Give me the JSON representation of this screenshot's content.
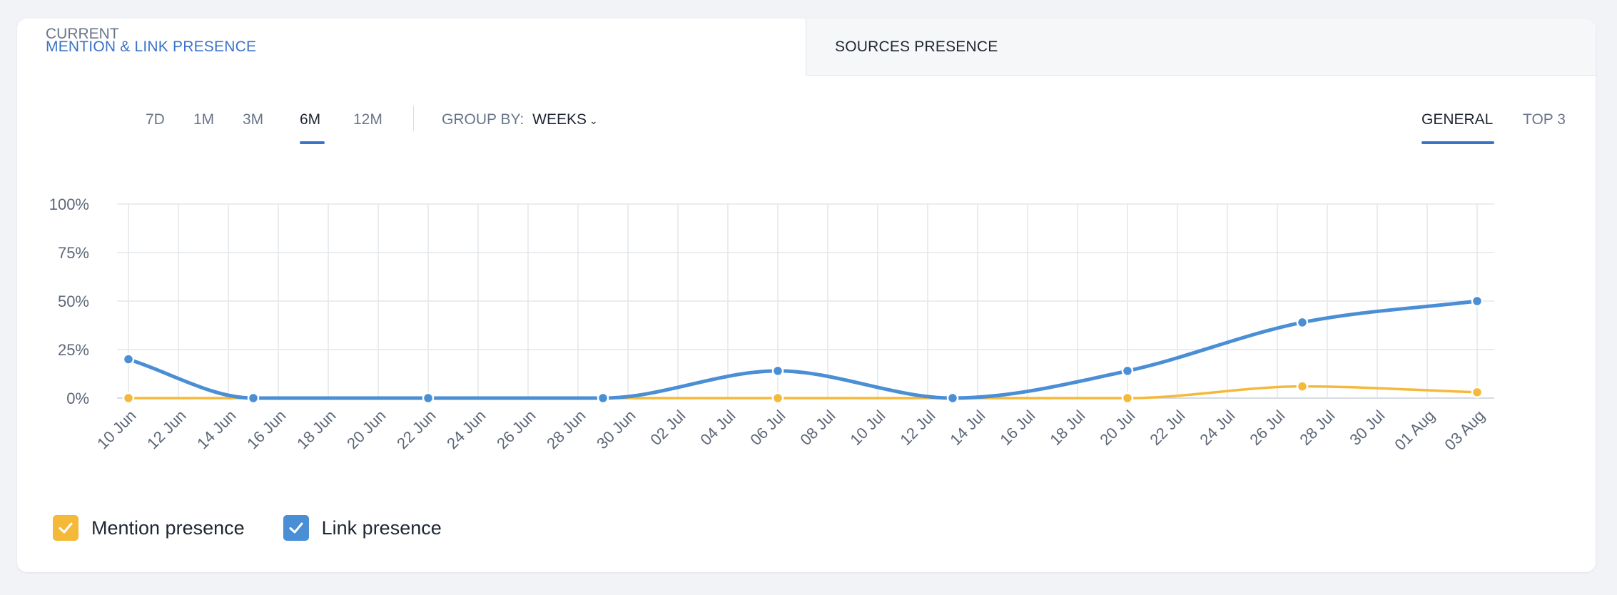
{
  "tabs": [
    {
      "label": "MENTION & LINK PRESENCE",
      "active": true
    },
    {
      "label": "SOURCES PRESENCE",
      "active": false
    }
  ],
  "periods": [
    "CURRENT",
    "7D",
    "1M",
    "3M",
    "6M",
    "12M"
  ],
  "active_period": "6M",
  "group_by": {
    "label": "GROUP BY:",
    "value": "WEEKS"
  },
  "views": [
    "GENERAL",
    "TOP 3"
  ],
  "active_view": "GENERAL",
  "colors": {
    "mention": "#f5b93a",
    "link": "#4a8ed5",
    "accent": "#3a73c8"
  },
  "legend": [
    {
      "label": "Mention presence",
      "series": "mention",
      "checked": true
    },
    {
      "label": "Link presence",
      "series": "link",
      "checked": true
    }
  ],
  "chart_data": {
    "type": "line",
    "y_ticks": [
      "100%",
      "75%",
      "50%",
      "25%",
      "0%"
    ],
    "ylim": [
      0,
      100
    ],
    "x_ticks": [
      "10 Jun",
      "12 Jun",
      "14 Jun",
      "16 Jun",
      "18 Jun",
      "20 Jun",
      "22 Jun",
      "24 Jun",
      "26 Jun",
      "28 Jun",
      "30 Jun",
      "02 Jul",
      "04 Jul",
      "06 Jul",
      "08 Jul",
      "10 Jul",
      "12 Jul",
      "14 Jul",
      "16 Jul",
      "18 Jul",
      "20 Jul",
      "22 Jul",
      "24 Jul",
      "26 Jul",
      "28 Jul",
      "30 Jul",
      "01 Aug",
      "03 Aug"
    ],
    "x": [
      "10 Jun",
      "15 Jun",
      "22 Jun",
      "29 Jun",
      "06 Jul",
      "13 Jul",
      "20 Jul",
      "27 Jul",
      "03 Aug"
    ],
    "series": [
      {
        "name": "Mention presence",
        "key": "mention",
        "values": [
          0,
          0,
          0,
          0,
          0,
          0,
          0,
          6,
          3
        ]
      },
      {
        "name": "Link presence",
        "key": "link",
        "values": [
          20,
          0,
          0,
          0,
          14,
          0,
          14,
          39,
          50
        ]
      }
    ],
    "grid": true,
    "legend_position": "bottom-left"
  }
}
